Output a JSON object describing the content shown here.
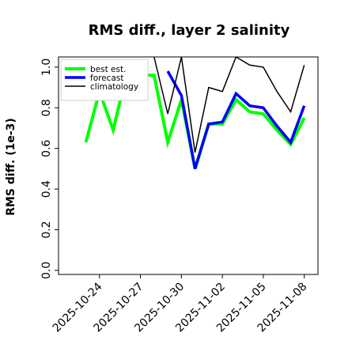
{
  "chart_data": {
    "type": "line",
    "title": "RMS diff., layer 2 salinity",
    "ylabel": "RMS diff. (1e-3)",
    "xlabel": "",
    "ylim": [
      -0.02,
      1.05
    ],
    "xlim": [
      "2025-10-21",
      "2025-11-09"
    ],
    "yticks": [
      "0.0",
      "0.2",
      "0.4",
      "0.6",
      "0.8",
      "1.0"
    ],
    "xticks": [
      {
        "date": "2025-10-24",
        "label": "2025-10-24",
        "color": "#000000"
      },
      {
        "date": "2025-10-27",
        "label": "2025-10-27",
        "color": "#000000"
      },
      {
        "date": "2025-10-30",
        "label": "2025-10-30",
        "color": "#008000"
      },
      {
        "date": "2025-11-02",
        "label": "2025-11-02",
        "color": "#000000"
      },
      {
        "date": "2025-11-05",
        "label": "2025-11-05",
        "color": "#000000"
      },
      {
        "date": "2025-11-08",
        "label": "2025-11-08",
        "color": "#000000"
      }
    ],
    "grid": false,
    "legend_position": "top-left",
    "series": [
      {
        "name": "best est.",
        "color": "#00ff00",
        "x": [
          "2025-10-23",
          "2025-10-24",
          "2025-10-25",
          "2025-10-26",
          "2025-10-27",
          "2025-10-28",
          "2025-10-29",
          "2025-10-30",
          "2025-10-31",
          "2025-11-01",
          "2025-11-02",
          "2025-11-03",
          "2025-11-04",
          "2025-11-05",
          "2025-11-06",
          "2025-11-07",
          "2025-11-08"
        ],
        "y": [
          0.63,
          0.88,
          0.69,
          0.97,
          0.96,
          0.96,
          0.63,
          0.84,
          0.5,
          0.72,
          0.72,
          0.84,
          0.78,
          0.77,
          0.69,
          0.62,
          0.75
        ]
      },
      {
        "name": "forecast",
        "color": "#0000ff",
        "x": [
          "2025-10-29",
          "2025-10-30",
          "2025-10-31",
          "2025-11-01",
          "2025-11-02",
          "2025-11-03",
          "2025-11-04",
          "2025-11-05",
          "2025-11-06",
          "2025-11-07",
          "2025-11-08"
        ],
        "y": [
          0.98,
          0.86,
          0.5,
          0.72,
          0.73,
          0.87,
          0.81,
          0.8,
          0.71,
          0.63,
          0.81
        ]
      },
      {
        "name": "climatology",
        "color": "#000000",
        "x": [
          "2025-10-28",
          "2025-10-29",
          "2025-10-30",
          "2025-10-31",
          "2025-11-01",
          "2025-11-02",
          "2025-11-03",
          "2025-11-04",
          "2025-11-05",
          "2025-11-06",
          "2025-11-07",
          "2025-11-08"
        ],
        "y": [
          1.05,
          0.77,
          1.05,
          0.58,
          0.9,
          0.88,
          1.05,
          1.01,
          1.0,
          0.88,
          0.78,
          1.01
        ]
      }
    ]
  }
}
